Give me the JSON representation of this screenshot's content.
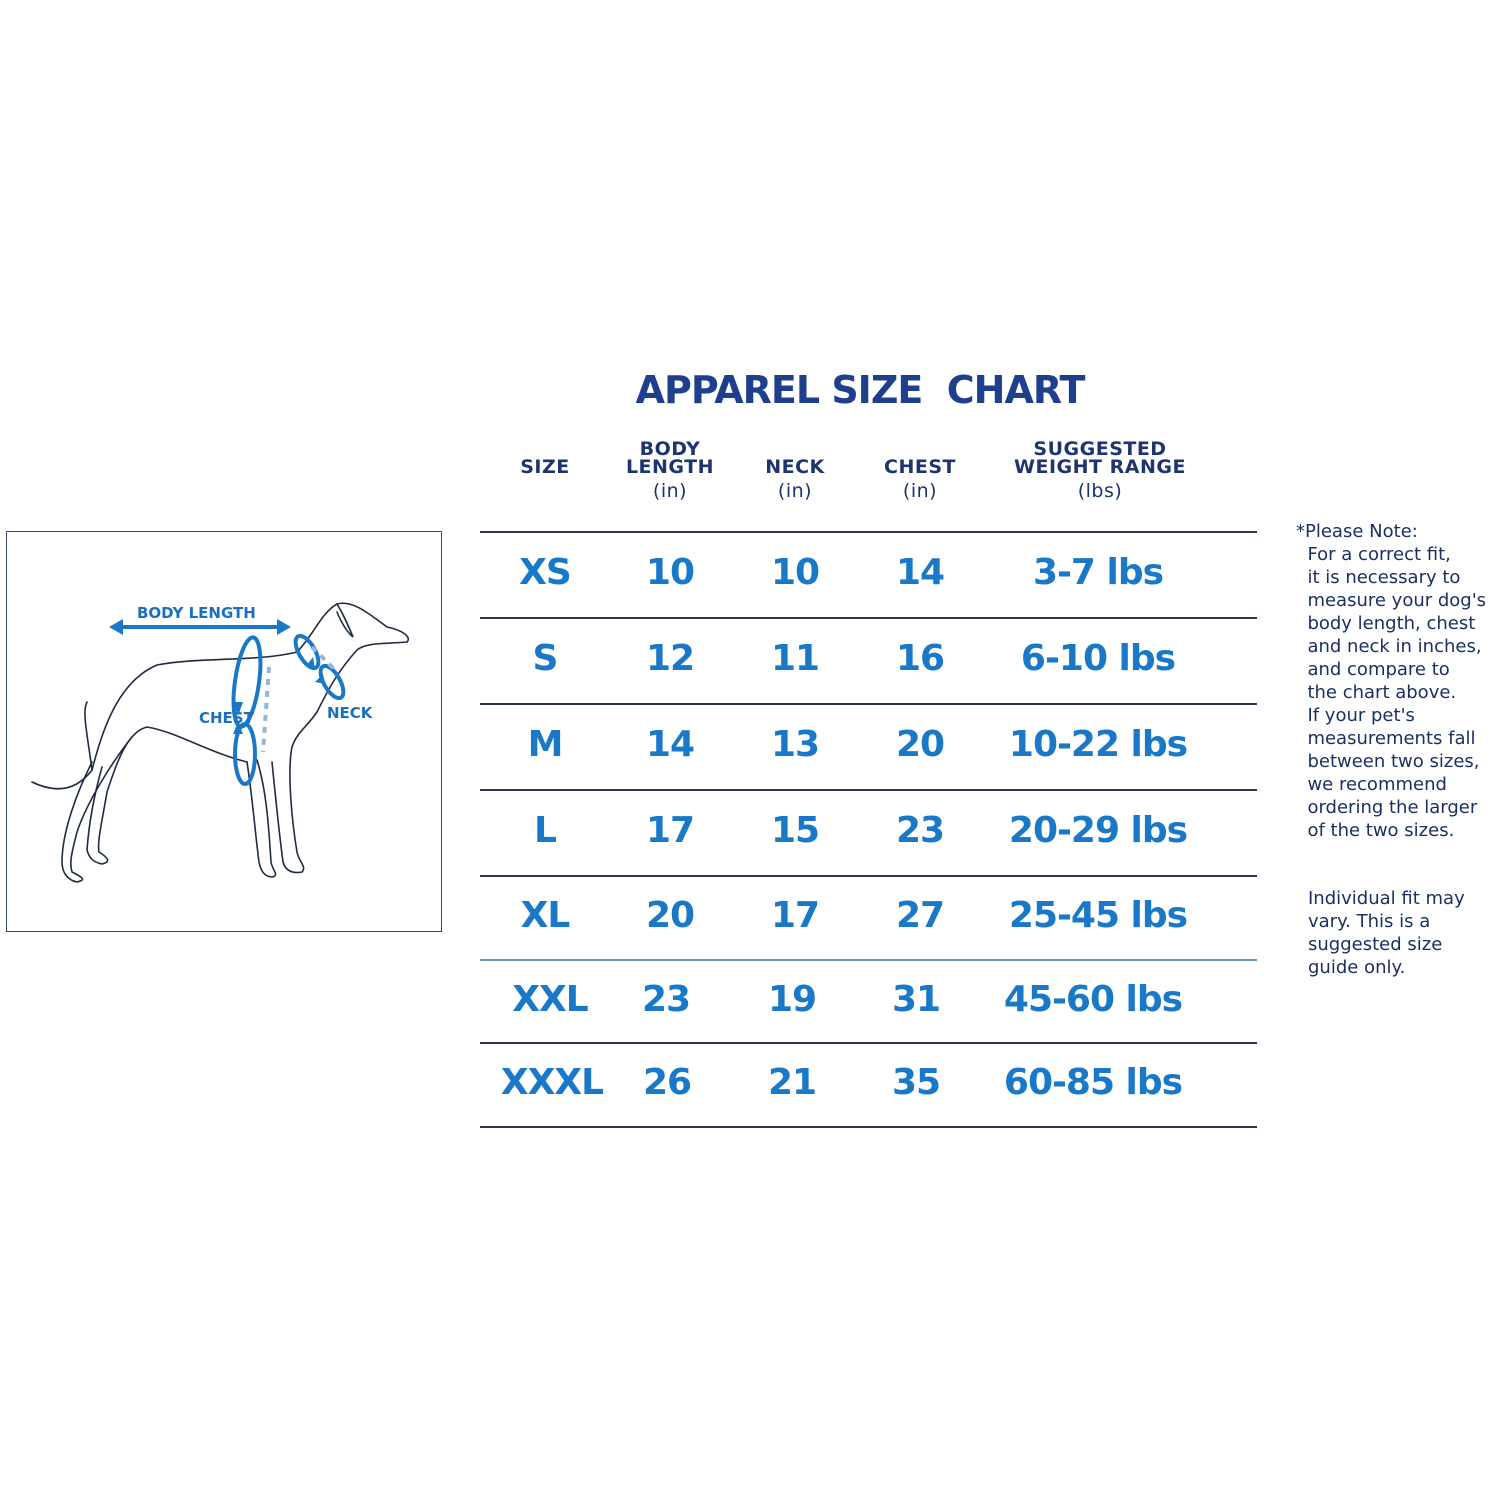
{
  "title": "APPAREL SIZE  CHART",
  "diagram": {
    "labels": {
      "body_length": "BODY LENGTH",
      "chest": "CHEST",
      "neck": "NECK"
    },
    "accent_color": "#1a78c8"
  },
  "table": {
    "headers": [
      {
        "line1": "",
        "line2": "SIZE",
        "unit": ""
      },
      {
        "line1": "BODY",
        "line2": "LENGTH",
        "unit": "(in)"
      },
      {
        "line1": "",
        "line2": "NECK",
        "unit": "(in)"
      },
      {
        "line1": "",
        "line2": "CHEST",
        "unit": "(in)"
      },
      {
        "line1": "SUGGESTED",
        "line2": "WEIGHT RANGE",
        "unit": "(lbs)"
      }
    ],
    "rows": [
      [
        "XS",
        "10",
        "10",
        "14",
        "3-7 lbs"
      ],
      [
        "S",
        "12",
        "11",
        "16",
        "6-10 lbs"
      ],
      [
        "M",
        "14",
        "13",
        "20",
        "10-22 lbs"
      ],
      [
        "L",
        "17",
        "15",
        "23",
        "20-29 lbs"
      ],
      [
        "XL",
        "20",
        "17",
        "27",
        "25-45 lbs"
      ],
      [
        "XXL",
        "23",
        "19",
        "31",
        "45-60 lbs"
      ],
      [
        "XXXL",
        "26",
        "21",
        "35",
        "60-85 lbs"
      ]
    ]
  },
  "note": {
    "lines": [
      "*Please Note:",
      "  For a correct fit,",
      "  it is necessary to",
      "  measure your dog's",
      "  body length, chest",
      "  and neck in inches,",
      "  and compare to",
      "  the chart above.",
      "  If your pet's",
      "  measurements fall",
      "  between two sizes,",
      "  we recommend",
      "  ordering the larger",
      "  of the two sizes."
    ],
    "disclaimer": [
      "Individual fit may",
      "vary. This is a",
      "suggested size",
      "guide only."
    ]
  }
}
